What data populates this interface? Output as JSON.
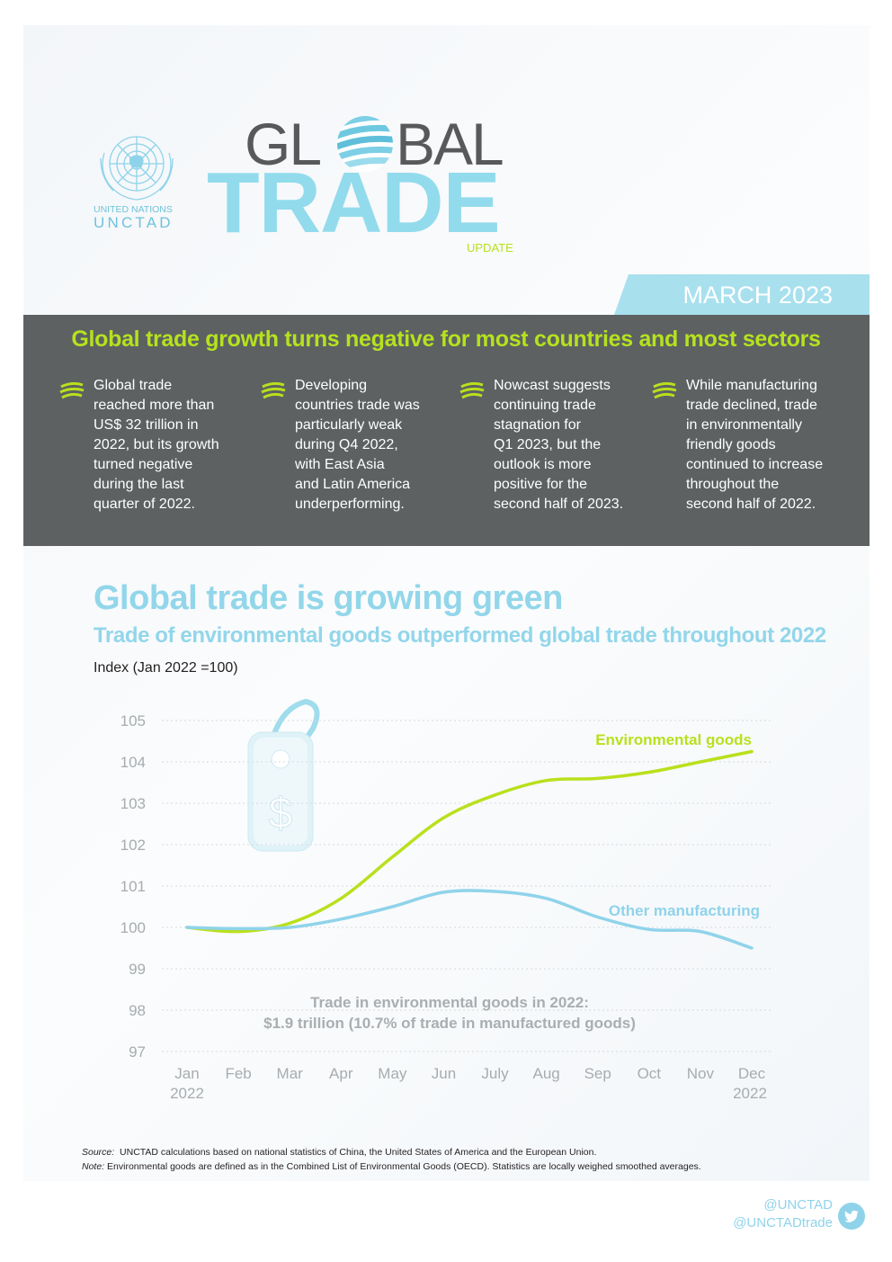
{
  "header": {
    "un_line1": "UNITED NATIONS",
    "un_line2": "UNCTAD",
    "title_gl": "GL",
    "title_bal": "BAL",
    "title_trade": "TRADE",
    "title_update": "UPDATE",
    "date": "MARCH 2023"
  },
  "banner": {
    "title": "Global trade growth turns negative for most countries and most sectors",
    "bullets": [
      "Global trade\nreached more than\nUS$ 32 trillion in\n2022, but its growth\nturned negative\nduring the last\nquarter of 2022.",
      "Developing\ncountries trade was\nparticularly weak\nduring Q4 2022,\nwith East Asia\nand Latin America\nunderperforming.",
      "Nowcast suggests\ncontinuing trade\nstagnation for\nQ1 2023, but the\noutlook is more\npositive for the\nsecond half of 2023.",
      "While manufacturing\ntrade declined, trade\nin environmentally\nfriendly goods\ncontinued to increase\nthroughout the\nsecond half of 2022."
    ]
  },
  "section": {
    "title": "Global trade is growing green",
    "subtitle": "Trade of environmental goods outperformed global trade throughout 2022"
  },
  "chart_data": {
    "type": "line",
    "ylabel": "Index (Jan 2022 =100)",
    "ylim": [
      97,
      105
    ],
    "yticks": [
      97,
      98,
      99,
      100,
      101,
      102,
      103,
      104,
      105
    ],
    "categories": [
      "Jan",
      "Feb",
      "Mar",
      "Apr",
      "May",
      "Jun",
      "July",
      "Aug",
      "Sep",
      "Oct",
      "Nov",
      "Dec"
    ],
    "x_year_first": "2022",
    "x_year_last": "2022",
    "grid": true,
    "series": [
      {
        "name": "Environmental goods",
        "color": "#b9e01c",
        "values": [
          100.0,
          99.9,
          100.1,
          100.7,
          101.7,
          102.65,
          103.2,
          103.55,
          103.6,
          103.75,
          104.0,
          104.25
        ]
      },
      {
        "name": "Other manufacturing",
        "color": "#8fd3ea",
        "values": [
          100.0,
          99.97,
          100.0,
          100.2,
          100.5,
          100.85,
          100.87,
          100.7,
          100.25,
          99.95,
          99.9,
          99.5
        ]
      }
    ],
    "annotation_line1": "Trade in environmental goods in 2022:",
    "annotation_line2": "$1.9 trillion (10.7% of trade in manufactured goods)"
  },
  "footer": {
    "source_label": "Source:",
    "source_text": "UNCTAD calculations based on national statistics of China, the United States of America and the European Union.",
    "note_label": "Note:",
    "note_text": "Environmental goods are defined as in the Combined List of Environmental Goods (OECD).  Statistics are locally weighed smoothed averages.",
    "social_1": "@UNCTAD",
    "social_2": "@UNCTADtrade",
    "twitter_icon": "twitter-bird-icon"
  }
}
